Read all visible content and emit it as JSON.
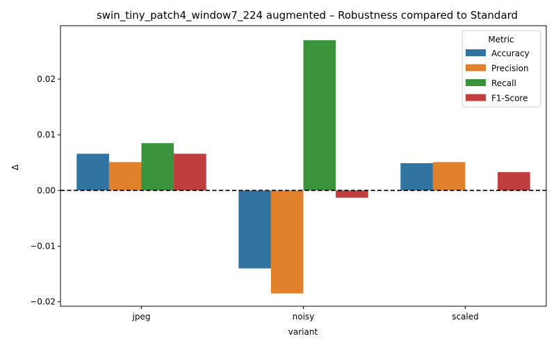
{
  "chart_data": {
    "type": "bar",
    "title": "swin_tiny_patch4_window7_224 augmented – Robustness compared to Standard",
    "xlabel": "variant",
    "ylabel": "Δ",
    "categories": [
      "jpeg",
      "noisy",
      "scaled"
    ],
    "series": [
      {
        "name": "Accuracy",
        "color": "#3274a1",
        "values": [
          0.0066,
          -0.014,
          0.0049
        ]
      },
      {
        "name": "Precision",
        "color": "#e1812c",
        "values": [
          0.0051,
          -0.0185,
          0.0051
        ]
      },
      {
        "name": "Recall",
        "color": "#3a923a",
        "values": [
          0.0085,
          0.027,
          0.0
        ]
      },
      {
        "name": "F1-Score",
        "color": "#c03d3e",
        "values": [
          0.0066,
          -0.0013,
          0.0033
        ]
      }
    ],
    "ylim": [
      -0.0208,
      0.0296
    ],
    "yticks": [
      -0.02,
      -0.01,
      0.0,
      0.01,
      0.02
    ],
    "ytick_labels": [
      "−0.02",
      "−0.01",
      "0.00",
      "0.01",
      "0.02"
    ],
    "reference_line": 0.0,
    "legend": {
      "title": "Metric",
      "position": "top-right"
    },
    "grid": false
  }
}
